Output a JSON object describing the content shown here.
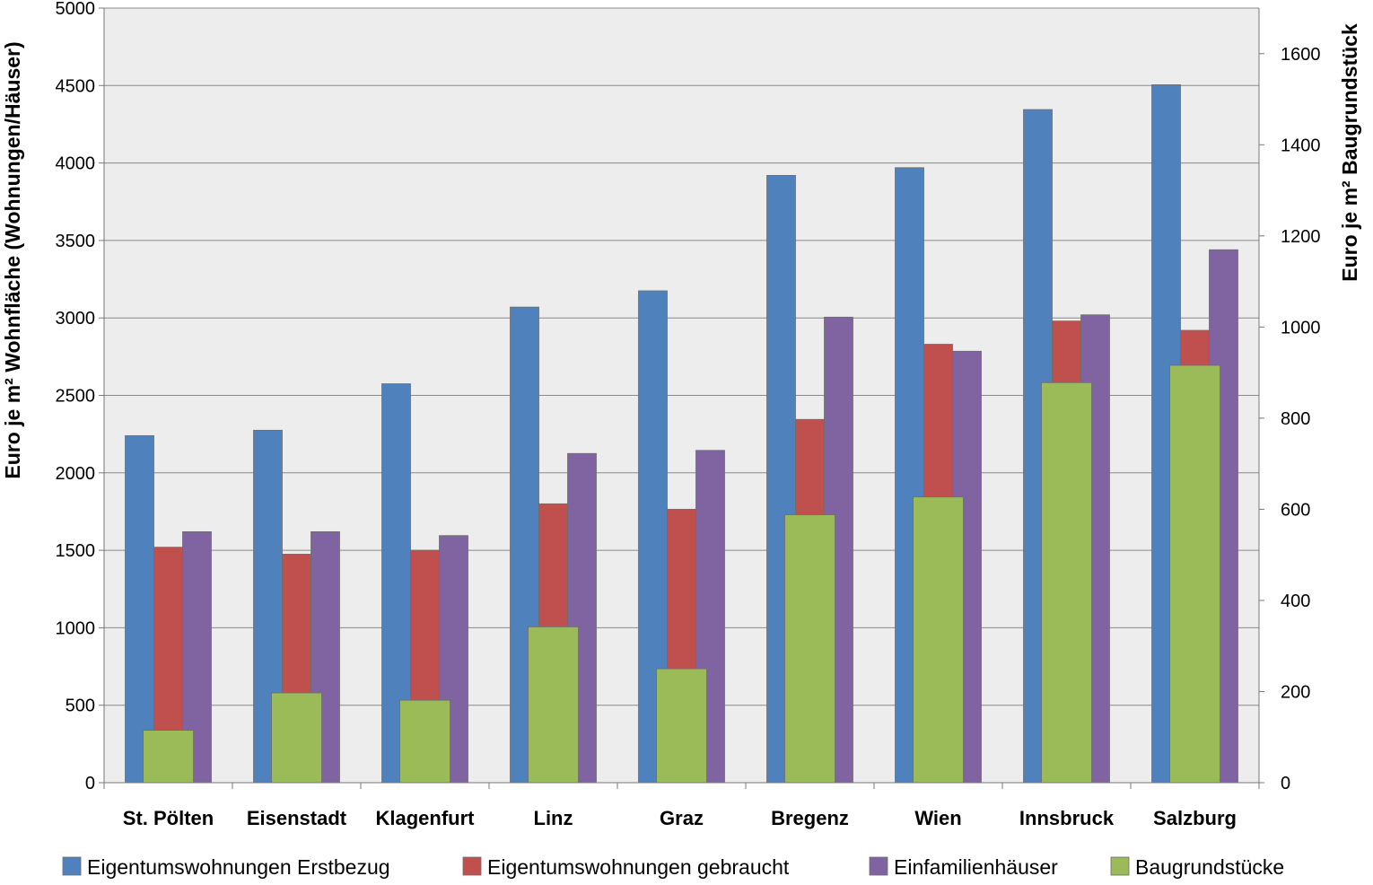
{
  "chart_data": {
    "type": "bar",
    "categories": [
      "St. Pölten",
      "Eisenstadt",
      "Klagenfurt",
      "Linz",
      "Graz",
      "Bregenz",
      "Wien",
      "Innsbruck",
      "Salzburg"
    ],
    "series": [
      {
        "name": "Eigentumswohnungen Erstbezug",
        "axis": "left",
        "color": "#4f81bd",
        "values": [
          2240,
          2275,
          2575,
          3070,
          3175,
          3920,
          3970,
          4345,
          4505
        ]
      },
      {
        "name": "Eigentumswohnungen gebraucht",
        "axis": "left",
        "color": "#c0504d",
        "values": [
          1520,
          1475,
          1500,
          1800,
          1765,
          2345,
          2830,
          2980,
          2920
        ]
      },
      {
        "name": "Einfamilienhäuser",
        "axis": "left",
        "color": "#8064a2",
        "values": [
          1620,
          1620,
          1595,
          2125,
          2145,
          3005,
          2785,
          3020,
          3440
        ]
      },
      {
        "name": "Baugrundstücke",
        "axis": "right",
        "color": "#9bbb59",
        "values": [
          115,
          197,
          181,
          342,
          250,
          588,
          627,
          878,
          916
        ]
      }
    ],
    "y_left": {
      "label": "Euro je m² Wohnfläche (Wohnungen/Häuser)",
      "range": [
        0,
        5000
      ],
      "ticks": [
        "0",
        "500",
        "1000",
        "1500",
        "2000",
        "2500",
        "3000",
        "3500",
        "4000",
        "4500",
        "5000"
      ]
    },
    "y_right": {
      "label": "Euro je m² Baugrundstück",
      "range": [
        0,
        1700
      ],
      "ticks": [
        "0",
        "200",
        "400",
        "600",
        "800",
        "1000",
        "1200",
        "1400",
        "1600"
      ]
    },
    "grid": true,
    "legend_position": "bottom"
  }
}
